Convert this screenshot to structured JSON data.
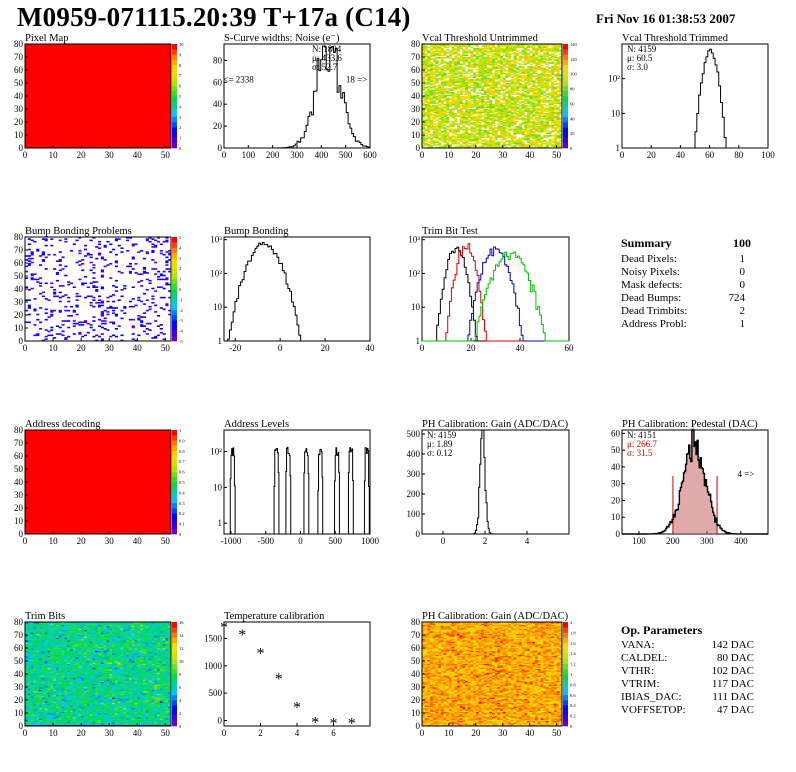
{
  "header": {
    "title": "M0959-071115.20:39 T+17a (C14)",
    "timestamp": "Fri Nov 16 01:38:53 2007"
  },
  "summary": {
    "title": "Summary",
    "value": "100",
    "rows": [
      {
        "label": "Dead Pixels:",
        "value": "1"
      },
      {
        "label": "Noisy Pixels:",
        "value": "0"
      },
      {
        "label": "Mask defects:",
        "value": "0"
      },
      {
        "label": "Dead Bumps:",
        "value": "724"
      },
      {
        "label": "Dead Trimbits:",
        "value": "2"
      },
      {
        "label": "Address Probl:",
        "value": "1"
      }
    ]
  },
  "op_parameters": {
    "title": "Op. Parameters",
    "rows": [
      {
        "label": "VANA:",
        "value": "142 DAC"
      },
      {
        "label": "CALDEL:",
        "value": "80 DAC"
      },
      {
        "label": "VTHR:",
        "value": "102 DAC"
      },
      {
        "label": "VTRIM:",
        "value": "117 DAC"
      },
      {
        "label": "IBIAS_DAC:",
        "value": "111 DAC"
      },
      {
        "label": "VOFFSETOP:",
        "value": "47 DAC"
      }
    ]
  },
  "colors": {
    "map_red": "#ff0000",
    "curve_black": "#000000",
    "curve_red": "#d40000",
    "curve_blue": "#0000cc",
    "curve_green": "#00c000",
    "stat_red": "#d40000",
    "pedestal_fill": "#c86464"
  },
  "chart_data": [
    {
      "id": "pixel-map",
      "type": "heatmap",
      "title": "Pixel Map",
      "xlim": [
        0,
        52
      ],
      "ylim": [
        0,
        80
      ],
      "xticks": [
        "0",
        "10",
        "20",
        "30",
        "40",
        "50"
      ],
      "yticks": [
        "0",
        "10",
        "20",
        "30",
        "40",
        "50",
        "60",
        "70",
        "80"
      ],
      "pattern": "uniform",
      "fill_level": 10,
      "palette_labels": [
        "0",
        "1",
        "2",
        "3",
        "4",
        "5",
        "6",
        "7",
        "8",
        "9",
        "10"
      ]
    },
    {
      "id": "scurve-noise",
      "type": "line",
      "title": "S-Curve widths: Noise (e⁻)",
      "xlim": [
        0,
        600
      ],
      "ylim": [
        0,
        95
      ],
      "xticks": [
        "0",
        "100",
        "200",
        "300",
        "400",
        "500",
        "600"
      ],
      "yticks": [
        "0",
        "20",
        "40",
        "60",
        "80"
      ],
      "stats": [
        {
          "label": "N:",
          "value": "1804"
        },
        {
          "label": "μ:",
          "value": "433.6"
        },
        {
          "label": "σ:",
          "value": "52.7"
        }
      ],
      "annotations": [
        {
          "text": "<= 2338",
          "x": 60,
          "y": 60
        },
        {
          "text": "18 =>",
          "x": 545,
          "y": 60
        }
      ],
      "series": [
        {
          "peak_x": 430,
          "sigma": 53,
          "peak_y": 88
        }
      ]
    },
    {
      "id": "vcal-untrimmed",
      "type": "heatmap",
      "title": "Vcal Threshold Untrimmed",
      "xlim": [
        0,
        52
      ],
      "ylim": [
        0,
        80
      ],
      "xticks": [
        "0",
        "10",
        "20",
        "30",
        "40",
        "50"
      ],
      "yticks": [
        "0",
        "10",
        "20",
        "30",
        "40",
        "50",
        "60",
        "70",
        "80"
      ],
      "pattern": "noise-low",
      "palette_labels": [
        "0",
        "20",
        "40",
        "60",
        "80",
        "100",
        "120",
        "140"
      ]
    },
    {
      "id": "vcal-trimmed",
      "type": "line",
      "title": "Vcal Threshold Trimmed",
      "xlim": [
        0,
        100
      ],
      "ylim": [
        1,
        1000
      ],
      "yscale": "log",
      "xticks": [
        "0",
        "20",
        "40",
        "60",
        "80",
        "100"
      ],
      "yticks": [
        "1",
        "10",
        "10²"
      ],
      "stats": [
        {
          "label": "N:",
          "value": "4159"
        },
        {
          "label": "μ:",
          "value": "60.5"
        },
        {
          "label": "σ:",
          "value": "3.0"
        }
      ],
      "series": [
        {
          "peak_x": 60.5,
          "sigma": 3.0,
          "peak_y": 600
        }
      ]
    },
    {
      "id": "bump-bonding-problems",
      "type": "heatmap",
      "title": "Bump Bonding Problems",
      "xlim": [
        0,
        52
      ],
      "ylim": [
        0,
        80
      ],
      "xticks": [
        "0",
        "10",
        "20",
        "30",
        "40",
        "50"
      ],
      "yticks": [
        "0",
        "10",
        "20",
        "30",
        "40",
        "50",
        "60",
        "70",
        "80"
      ],
      "pattern": "sparse",
      "palette_labels": [
        "-5",
        "-4",
        "-3",
        "-2",
        "-1",
        "0",
        "1",
        "2",
        "3",
        "4",
        "5"
      ]
    },
    {
      "id": "bump-bonding",
      "type": "line",
      "title": "Bump Bonding",
      "xlim": [
        -25,
        40
      ],
      "ylim": [
        1,
        1200
      ],
      "yscale": "log",
      "xticks": [
        "-20",
        "0",
        "20",
        "40"
      ],
      "yticks": [
        "1",
        "10",
        "10²",
        "10³"
      ],
      "series": [
        {
          "peak_x": -7,
          "sigma": 4.5,
          "peak_y": 700
        }
      ]
    },
    {
      "id": "trim-bit-test",
      "type": "line",
      "title": "Trim Bit Test",
      "xlim": [
        0,
        60
      ],
      "ylim": [
        1,
        1200
      ],
      "yscale": "log",
      "xticks": [
        "0",
        "20",
        "40",
        "60"
      ],
      "yticks": [
        "1",
        "10",
        "10²",
        "10³"
      ],
      "series": [
        {
          "peak_x": 14,
          "sigma": 2.3,
          "peak_y": 600,
          "color": "#000000"
        },
        {
          "peak_x": 18,
          "sigma": 2.3,
          "peak_y": 600,
          "color": "#d40000"
        },
        {
          "peak_x": 30,
          "sigma": 3.2,
          "peak_y": 500,
          "color": "#0000cc"
        },
        {
          "peak_x": 36,
          "sigma": 4.2,
          "peak_y": 400,
          "color": "#00c000"
        }
      ]
    },
    {
      "id": "address-decoding",
      "type": "heatmap",
      "title": "Address decoding",
      "xlim": [
        0,
        52
      ],
      "ylim": [
        0,
        80
      ],
      "xticks": [
        "0",
        "10",
        "20",
        "30",
        "40",
        "50"
      ],
      "yticks": [
        "0",
        "10",
        "20",
        "30",
        "40",
        "50",
        "60",
        "70",
        "80"
      ],
      "pattern": "uniform",
      "fill_level": 1,
      "palette_labels": [
        "0",
        "0.1",
        "0.2",
        "0.3",
        "0.4",
        "0.5",
        "0.6",
        "0.7",
        "0.8",
        "0.9",
        "1"
      ]
    },
    {
      "id": "address-levels",
      "type": "line",
      "title": "Address Levels",
      "xlim": [
        -1100,
        1000
      ],
      "ylim": [
        0.5,
        400
      ],
      "yscale": "log",
      "xticks": [
        "-1000",
        "-500",
        "0",
        "500",
        "1000"
      ],
      "yticks": [
        "1",
        "10",
        "10²"
      ],
      "series": [
        {
          "peaks": [
            -980,
            -350,
            -180,
            80,
            280,
            520,
            720,
            950
          ],
          "peak_y": 120
        }
      ]
    },
    {
      "id": "ph-gain",
      "type": "line",
      "title": "PH Calibration: Gain (ADC/DAC)",
      "xlim": [
        -1,
        6
      ],
      "ylim": [
        0,
        520
      ],
      "xticks": [
        "0",
        "2",
        "4"
      ],
      "yticks": [
        "0",
        "100",
        "200",
        "300",
        "400",
        "500"
      ],
      "stats": [
        {
          "label": "N:",
          "value": "4159"
        },
        {
          "label": "μ:",
          "value": "1.89"
        },
        {
          "label": "σ:",
          "value": "0.12"
        }
      ],
      "series": [
        {
          "peak_x": 1.89,
          "sigma": 0.12,
          "peak_y": 490
        }
      ]
    },
    {
      "id": "ph-pedestal",
      "type": "line",
      "title": "PH Calibration: Pedestal (DAC)",
      "xlim": [
        50,
        480
      ],
      "ylim": [
        0,
        62
      ],
      "xticks": [
        "100",
        "200",
        "300",
        "400"
      ],
      "yticks": [
        "0",
        "10",
        "20",
        "30",
        "40",
        "50",
        "60"
      ],
      "stats": [
        {
          "label": "N:",
          "value": "4151"
        },
        {
          "label": "μ:",
          "value": "266.7"
        },
        {
          "label": "σ:",
          "value": "31.5"
        }
      ],
      "annotations": [
        {
          "text": "4 =>",
          "x": 415,
          "y": 34
        }
      ],
      "series": [
        {
          "peak_x": 262,
          "sigma": 34,
          "peak_y": 52,
          "cut_low": 200,
          "cut_high": 330
        }
      ]
    },
    {
      "id": "trim-bits",
      "type": "heatmap",
      "title": "Trim Bits",
      "xlim": [
        0,
        52
      ],
      "ylim": [
        0,
        80
      ],
      "xticks": [
        "0",
        "10",
        "20",
        "30",
        "40",
        "50"
      ],
      "yticks": [
        "0",
        "10",
        "20",
        "30",
        "40",
        "50",
        "60",
        "70",
        "80"
      ],
      "pattern": "noise-trim",
      "palette_labels": [
        "0",
        "2",
        "4",
        "6",
        "8",
        "10",
        "12",
        "14",
        "16"
      ]
    },
    {
      "id": "temperature-calibration",
      "type": "scatter",
      "title": "Temperature calibration",
      "xlim": [
        0,
        8
      ],
      "ylim": [
        -100,
        1800
      ],
      "xticks": [
        "0",
        "2",
        "4",
        "6"
      ],
      "yticks": [
        "0",
        "500",
        "1000",
        "1500"
      ],
      "x": [
        0,
        1,
        2,
        3,
        4,
        5,
        6,
        7
      ],
      "y": [
        1700,
        1560,
        1220,
        760,
        240,
        -40,
        -50,
        -50
      ]
    },
    {
      "id": "ph-gain-map",
      "type": "heatmap",
      "title": "PH Calibration: Gain (ADC/DAC)",
      "xlim": [
        0,
        52
      ],
      "ylim": [
        0,
        80
      ],
      "xticks": [
        "0",
        "10",
        "20",
        "30",
        "40",
        "50"
      ],
      "yticks": [
        "0",
        "10",
        "20",
        "30",
        "40",
        "50",
        "60",
        "70",
        "80"
      ],
      "pattern": "noise-gain",
      "palette_labels": [
        "0",
        "0.2",
        "0.4",
        "0.6",
        "0.8",
        "1",
        "1.2",
        "1.4",
        "1.6",
        "1.8",
        "2"
      ]
    }
  ]
}
